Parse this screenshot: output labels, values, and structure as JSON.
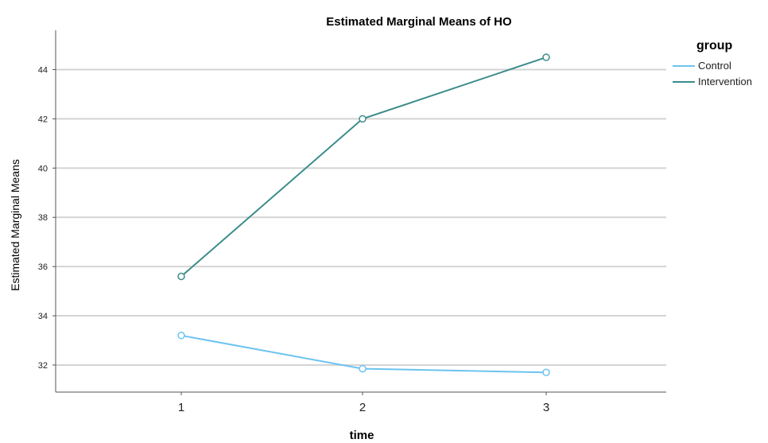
{
  "chart_data": {
    "type": "line",
    "title": "Estimated Marginal Means of HO",
    "xlabel": "time",
    "ylabel": "Estimated Marginal Means",
    "categories": [
      "1",
      "2",
      "3"
    ],
    "yticks": [
      32,
      34,
      36,
      38,
      40,
      42,
      44
    ],
    "ylim": [
      30.9,
      45.6
    ],
    "grid": true,
    "legend": {
      "title": "group",
      "placement": "top-right"
    },
    "series": [
      {
        "name": "Control",
        "color": "#6cc3ef",
        "values": [
          33.2,
          31.85,
          31.7
        ]
      },
      {
        "name": "Intervention",
        "color": "#3d8c8c",
        "values": [
          35.6,
          42.0,
          44.5
        ]
      }
    ]
  }
}
